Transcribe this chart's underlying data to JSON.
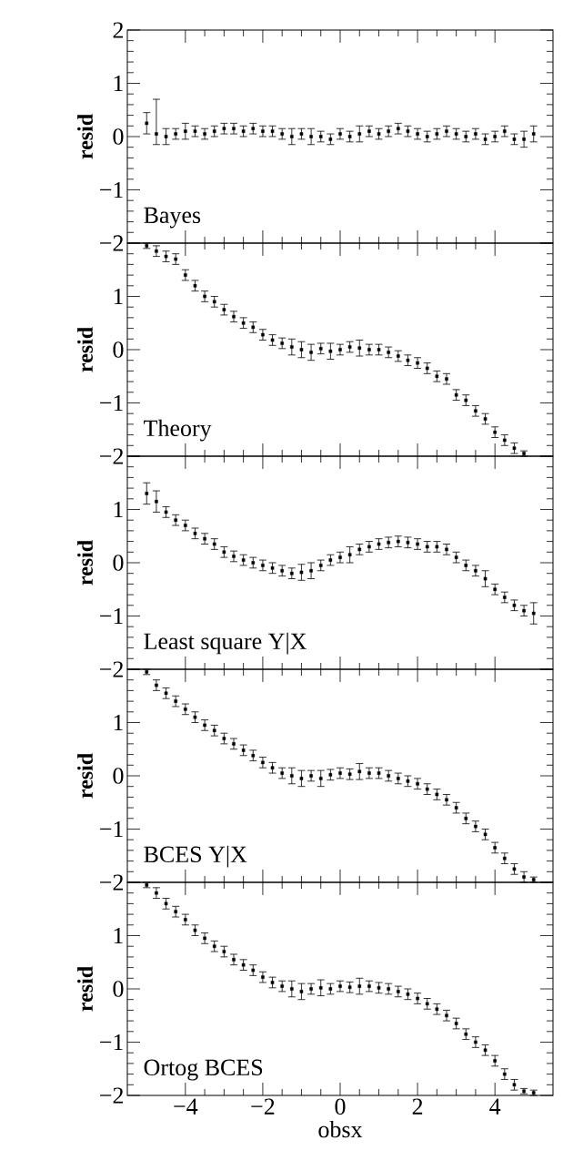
{
  "chart_data": [
    {
      "type": "scatter",
      "title": "Bayes",
      "ylabel": "resid",
      "color": "#000000",
      "marker": "square",
      "tick_labels": "y",
      "xlim": [
        -5.5,
        5.5
      ],
      "ylim": [
        -2,
        2
      ],
      "xticks": [
        -4,
        -2,
        0,
        2,
        4
      ],
      "yticks": [
        {
          "value": -2,
          "label": "−2"
        },
        {
          "value": -1,
          "label": "−1"
        },
        0,
        1,
        2
      ],
      "x": [
        -5,
        -4.75,
        -4.5,
        -4.25,
        -4,
        -3.75,
        -3.5,
        -3.25,
        -3,
        -2.75,
        -2.5,
        -2.25,
        -2,
        -1.75,
        -1.5,
        -1.25,
        -1,
        -0.75,
        -0.5,
        -0.25,
        0,
        0.25,
        0.5,
        0.75,
        1,
        1.25,
        1.5,
        1.75,
        2,
        2.25,
        2.5,
        2.75,
        3,
        3.25,
        3.5,
        3.75,
        4,
        4.25,
        4.5,
        4.75,
        5
      ],
      "values": [
        0.25,
        0.05,
        0.0,
        0.05,
        0.1,
        0.1,
        0.05,
        0.1,
        0.15,
        0.15,
        0.1,
        0.15,
        0.1,
        0.1,
        0.05,
        0.0,
        0.05,
        0.0,
        0.0,
        -0.05,
        0.05,
        0.0,
        0.05,
        0.1,
        0.05,
        0.1,
        0.15,
        0.1,
        0.05,
        0.0,
        0.05,
        0.1,
        0.05,
        0.0,
        0.05,
        -0.05,
        0.0,
        0.1,
        -0.05,
        -0.05,
        0.05
      ],
      "errors": [
        0.2,
        [
          -0.15,
          0.7
        ],
        0.15,
        0.1,
        0.15,
        0.1,
        0.1,
        0.1,
        0.1,
        0.1,
        0.1,
        0.1,
        0.1,
        0.1,
        0.1,
        0.15,
        0.1,
        0.15,
        0.1,
        0.1,
        0.1,
        0.1,
        0.15,
        0.1,
        0.1,
        0.1,
        0.1,
        0.1,
        0.1,
        0.1,
        0.1,
        0.1,
        0.1,
        0.1,
        0.1,
        0.1,
        0.1,
        0.1,
        0.1,
        0.15,
        0.15
      ]
    },
    {
      "type": "scatter",
      "title": "Theory",
      "ylabel": "resid",
      "color": "#000000",
      "marker": "square",
      "tick_labels": "y",
      "xlim": [
        -5.5,
        5.5
      ],
      "ylim": [
        -2,
        2
      ],
      "xticks": [
        -4,
        -2,
        0,
        2,
        4
      ],
      "yticks": [
        {
          "value": -2,
          "label": "−2"
        },
        {
          "value": -1,
          "label": "−1"
        },
        0,
        1,
        {
          "value": 2,
          "label": null
        }
      ],
      "x": [
        -5,
        -4.75,
        -4.5,
        -4.25,
        -4,
        -3.75,
        -3.5,
        -3.25,
        -3,
        -2.75,
        -2.5,
        -2.25,
        -2,
        -1.75,
        -1.5,
        -1.25,
        -1,
        -0.75,
        -0.5,
        -0.25,
        0,
        0.25,
        0.5,
        0.75,
        1,
        1.25,
        1.5,
        1.75,
        2,
        2.25,
        2.5,
        2.75,
        3,
        3.25,
        3.5,
        3.75,
        4,
        4.25,
        4.5,
        4.75
      ],
      "values": [
        1.95,
        1.85,
        1.75,
        1.7,
        1.4,
        1.2,
        1.0,
        0.9,
        0.75,
        0.62,
        0.5,
        0.42,
        0.28,
        0.18,
        0.12,
        0.05,
        0.0,
        -0.05,
        0.02,
        -0.03,
        0.0,
        0.05,
        0.03,
        0.0,
        0.0,
        -0.05,
        -0.12,
        -0.2,
        -0.25,
        -0.35,
        -0.5,
        -0.55,
        -0.85,
        -0.95,
        -1.15,
        -1.3,
        -1.55,
        -1.7,
        -1.85,
        -1.95
      ],
      "errors": [
        0.05,
        0.1,
        0.1,
        0.1,
        0.1,
        0.1,
        0.1,
        0.1,
        0.1,
        0.1,
        0.1,
        0.1,
        0.1,
        0.1,
        0.1,
        0.15,
        0.15,
        0.15,
        0.1,
        0.15,
        0.1,
        0.1,
        0.15,
        0.1,
        0.1,
        0.1,
        0.1,
        0.1,
        0.1,
        0.1,
        0.1,
        0.1,
        0.1,
        0.1,
        0.1,
        0.1,
        0.1,
        0.1,
        0.1,
        0.05
      ]
    },
    {
      "type": "scatter",
      "title": "Least square Y|X",
      "ylabel": "resid",
      "color": "#000000",
      "marker": "square",
      "tick_labels": "y",
      "xlim": [
        -5.5,
        5.5
      ],
      "ylim": [
        -2,
        2
      ],
      "xticks": [
        -4,
        -2,
        0,
        2,
        4
      ],
      "yticks": [
        {
          "value": -2,
          "label": "−2"
        },
        {
          "value": -1,
          "label": "−1"
        },
        0,
        1,
        {
          "value": 2,
          "label": null
        }
      ],
      "x": [
        -5,
        -4.75,
        -4.5,
        -4.25,
        -4,
        -3.75,
        -3.5,
        -3.25,
        -3,
        -2.75,
        -2.5,
        -2.25,
        -2,
        -1.75,
        -1.5,
        -1.25,
        -1,
        -0.75,
        -0.5,
        -0.25,
        0,
        0.25,
        0.5,
        0.75,
        1,
        1.25,
        1.5,
        1.75,
        2,
        2.25,
        2.5,
        2.75,
        3,
        3.25,
        3.5,
        3.75,
        4,
        4.25,
        4.5,
        4.75,
        5
      ],
      "values": [
        1.3,
        1.15,
        0.95,
        0.8,
        0.7,
        0.55,
        0.45,
        0.35,
        0.2,
        0.12,
        0.05,
        0.0,
        -0.05,
        -0.1,
        -0.15,
        -0.2,
        -0.18,
        -0.15,
        -0.05,
        0.05,
        0.1,
        0.15,
        0.25,
        0.3,
        0.35,
        0.38,
        0.4,
        0.38,
        0.35,
        0.3,
        0.3,
        0.25,
        0.1,
        -0.05,
        -0.15,
        -0.3,
        -0.5,
        -0.65,
        -0.8,
        -0.9,
        -0.95
      ],
      "errors": [
        0.2,
        0.2,
        0.1,
        0.1,
        0.1,
        0.1,
        0.1,
        0.1,
        0.1,
        0.1,
        0.1,
        0.1,
        0.1,
        0.1,
        0.1,
        0.1,
        0.15,
        0.15,
        0.1,
        0.1,
        0.1,
        0.15,
        0.1,
        0.1,
        0.1,
        0.1,
        0.1,
        0.1,
        0.1,
        0.1,
        0.1,
        0.1,
        0.1,
        0.1,
        0.1,
        0.15,
        0.1,
        0.1,
        0.1,
        0.1,
        0.2
      ]
    },
    {
      "type": "scatter",
      "title": "BCES Y|X",
      "ylabel": "resid",
      "color": "#000000",
      "marker": "square",
      "tick_labels": "y",
      "xlim": [
        -5.5,
        5.5
      ],
      "ylim": [
        -2,
        2
      ],
      "xticks": [
        -4,
        -2,
        0,
        2,
        4
      ],
      "yticks": [
        {
          "value": -2,
          "label": "−2"
        },
        {
          "value": -1,
          "label": "−1"
        },
        0,
        1,
        {
          "value": 2,
          "label": null
        }
      ],
      "x": [
        -5,
        -4.75,
        -4.5,
        -4.25,
        -4,
        -3.75,
        -3.5,
        -3.25,
        -3,
        -2.75,
        -2.5,
        -2.25,
        -2,
        -1.75,
        -1.5,
        -1.25,
        -1,
        -0.75,
        -0.5,
        -0.25,
        0,
        0.25,
        0.5,
        0.75,
        1,
        1.25,
        1.5,
        1.75,
        2,
        2.25,
        2.5,
        2.75,
        3,
        3.25,
        3.5,
        3.75,
        4,
        4.25,
        4.5,
        4.75,
        5
      ],
      "values": [
        1.95,
        1.7,
        1.55,
        1.4,
        1.25,
        1.1,
        0.95,
        0.85,
        0.7,
        0.6,
        0.48,
        0.38,
        0.25,
        0.15,
        0.05,
        0.0,
        -0.05,
        0.0,
        -0.05,
        0.02,
        0.05,
        0.03,
        0.08,
        0.05,
        0.05,
        0.0,
        -0.05,
        -0.1,
        -0.15,
        -0.25,
        -0.35,
        -0.45,
        -0.6,
        -0.8,
        -0.95,
        -1.1,
        -1.35,
        -1.55,
        -1.75,
        -1.9,
        -1.95
      ],
      "errors": [
        0.05,
        0.1,
        0.1,
        0.1,
        0.1,
        0.1,
        0.1,
        0.1,
        0.1,
        0.1,
        0.1,
        0.1,
        0.1,
        0.1,
        0.1,
        0.15,
        0.15,
        0.1,
        0.15,
        0.1,
        0.1,
        0.1,
        0.15,
        0.1,
        0.1,
        0.1,
        0.1,
        0.1,
        0.1,
        0.1,
        0.1,
        0.1,
        0.1,
        0.1,
        0.1,
        0.1,
        0.1,
        0.1,
        0.1,
        0.1,
        0.05
      ]
    },
    {
      "type": "scatter",
      "title": "Ortog BCES",
      "ylabel": "resid",
      "xlabel": "obsx",
      "color": "#000000",
      "marker": "square",
      "xlim": [
        -5.5,
        5.5
      ],
      "ylim": [
        -2,
        2
      ],
      "xticks": [
        {
          "value": -4,
          "label": "−4"
        },
        {
          "value": -2,
          "label": "−2"
        },
        0,
        2,
        4
      ],
      "yticks": [
        {
          "value": -2,
          "label": "−2"
        },
        {
          "value": -1,
          "label": "−1"
        },
        0,
        1,
        {
          "value": 2,
          "label": null
        }
      ],
      "x": [
        -5,
        -4.75,
        -4.5,
        -4.25,
        -4,
        -3.75,
        -3.5,
        -3.25,
        -3,
        -2.75,
        -2.5,
        -2.25,
        -2,
        -1.75,
        -1.5,
        -1.25,
        -1,
        -0.75,
        -0.5,
        -0.25,
        0,
        0.25,
        0.5,
        0.75,
        1,
        1.25,
        1.5,
        1.75,
        2,
        2.25,
        2.5,
        2.75,
        3,
        3.25,
        3.5,
        3.75,
        4,
        4.25,
        4.5,
        4.75,
        5
      ],
      "values": [
        1.95,
        1.8,
        1.6,
        1.45,
        1.3,
        1.1,
        0.95,
        0.8,
        0.7,
        0.55,
        0.45,
        0.35,
        0.22,
        0.12,
        0.05,
        0.0,
        -0.05,
        0.0,
        0.02,
        0.0,
        0.05,
        0.03,
        0.05,
        0.05,
        0.02,
        0.0,
        -0.05,
        -0.1,
        -0.18,
        -0.28,
        -0.38,
        -0.5,
        -0.65,
        -0.85,
        -1.0,
        -1.15,
        -1.35,
        -1.6,
        -1.8,
        -1.92,
        -1.95
      ],
      "errors": [
        0.05,
        0.1,
        0.1,
        0.1,
        0.1,
        0.1,
        0.1,
        0.1,
        0.1,
        0.1,
        0.1,
        0.1,
        0.1,
        0.1,
        0.1,
        0.15,
        0.15,
        0.1,
        0.15,
        0.1,
        0.1,
        0.1,
        0.15,
        0.1,
        0.1,
        0.1,
        0.1,
        0.1,
        0.1,
        0.1,
        0.1,
        0.1,
        0.1,
        0.1,
        0.1,
        0.1,
        0.1,
        0.1,
        0.1,
        0.05,
        0.05
      ]
    }
  ]
}
